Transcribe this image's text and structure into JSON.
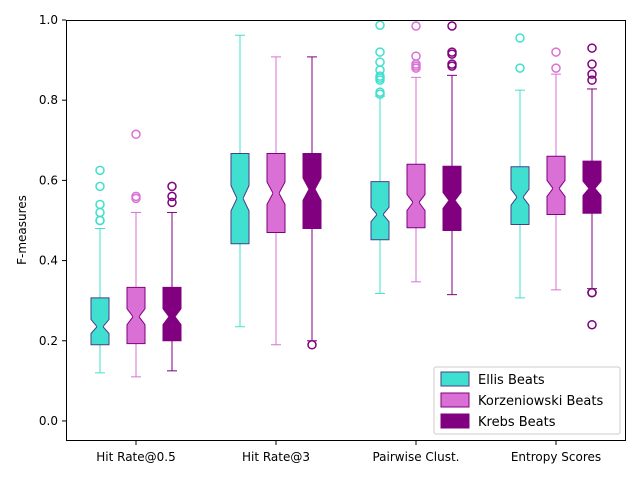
{
  "chart_data": {
    "type": "box",
    "ylabel": "F-measures",
    "ylim": [
      -0.05,
      1.0
    ],
    "yticks": [
      "0.0",
      "0.2",
      "0.4",
      "0.6",
      "0.8",
      "1.0"
    ],
    "ytick_values": [
      0.0,
      0.2,
      0.4,
      0.6,
      0.8,
      1.0
    ],
    "grid": false,
    "notched": true,
    "legend_position": "bottom-right",
    "categories": [
      "Hit Rate@0.5",
      "Hit Rate@3",
      "Pairwise Clust.",
      "Entropy Scores"
    ],
    "series": [
      {
        "name": "Ellis Beats",
        "fill": "#40e0d0",
        "edge": "#483d8b",
        "whisker": "#40e0d0",
        "boxes": [
          {
            "q1": 0.19,
            "median": 0.235,
            "q3": 0.307,
            "notch_low": 0.218,
            "notch_high": 0.253,
            "whisker_low": 0.12,
            "whisker_high": 0.48,
            "outliers": [
              0.5,
              0.5,
              0.52,
              0.54,
              0.585,
              0.625
            ]
          },
          {
            "q1": 0.442,
            "median": 0.555,
            "q3": 0.667,
            "notch_low": 0.524,
            "notch_high": 0.587,
            "whisker_low": 0.235,
            "whisker_high": 0.962,
            "outliers": []
          },
          {
            "q1": 0.452,
            "median": 0.515,
            "q3": 0.597,
            "notch_low": 0.497,
            "notch_high": 0.533,
            "whisker_low": 0.318,
            "whisker_high": 0.81,
            "outliers": [
              0.815,
              0.82,
              0.85,
              0.855,
              0.86,
              0.875,
              0.895,
              0.92,
              0.987
            ]
          },
          {
            "q1": 0.49,
            "median": 0.558,
            "q3": 0.634,
            "notch_low": 0.538,
            "notch_high": 0.578,
            "whisker_low": 0.307,
            "whisker_high": 0.825,
            "outliers": [
              0.88,
              0.955
            ]
          }
        ]
      },
      {
        "name": "Korzeniowski Beats",
        "fill": "#da70d6",
        "edge": "#800080",
        "whisker": "#da70d6",
        "boxes": [
          {
            "q1": 0.193,
            "median": 0.26,
            "q3": 0.333,
            "notch_low": 0.24,
            "notch_high": 0.28,
            "whisker_low": 0.11,
            "whisker_high": 0.52,
            "outliers": [
              0.555,
              0.56,
              0.715
            ]
          },
          {
            "q1": 0.47,
            "median": 0.568,
            "q3": 0.667,
            "notch_low": 0.54,
            "notch_high": 0.596,
            "whisker_low": 0.19,
            "whisker_high": 0.908,
            "outliers": []
          },
          {
            "q1": 0.482,
            "median": 0.545,
            "q3": 0.64,
            "notch_low": 0.525,
            "notch_high": 0.565,
            "whisker_low": 0.347,
            "whisker_high": 0.857,
            "outliers": [
              0.88,
              0.885,
              0.89,
              0.91,
              0.985
            ]
          },
          {
            "q1": 0.515,
            "median": 0.58,
            "q3": 0.66,
            "notch_low": 0.56,
            "notch_high": 0.6,
            "whisker_low": 0.327,
            "whisker_high": 0.865,
            "outliers": [
              0.88,
              0.92
            ]
          }
        ]
      },
      {
        "name": "Krebs Beats",
        "fill": "#800080",
        "edge": "#800080",
        "whisker": "#800080",
        "boxes": [
          {
            "q1": 0.2,
            "median": 0.26,
            "q3": 0.333,
            "notch_low": 0.24,
            "notch_high": 0.28,
            "whisker_low": 0.125,
            "whisker_high": 0.52,
            "outliers": [
              0.545,
              0.56,
              0.585
            ]
          },
          {
            "q1": 0.48,
            "median": 0.578,
            "q3": 0.667,
            "notch_low": 0.55,
            "notch_high": 0.606,
            "whisker_low": 0.2,
            "whisker_high": 0.908,
            "outliers": [
              0.19
            ]
          },
          {
            "q1": 0.475,
            "median": 0.55,
            "q3": 0.635,
            "notch_low": 0.53,
            "notch_high": 0.57,
            "whisker_low": 0.315,
            "whisker_high": 0.862,
            "outliers": [
              0.885,
              0.89,
              0.915,
              0.92,
              0.985
            ]
          },
          {
            "q1": 0.518,
            "median": 0.58,
            "q3": 0.648,
            "notch_low": 0.562,
            "notch_high": 0.598,
            "whisker_low": 0.33,
            "whisker_high": 0.828,
            "outliers": [
              0.24,
              0.32,
              0.32,
              0.85,
              0.865,
              0.89,
              0.93
            ]
          }
        ]
      }
    ]
  }
}
